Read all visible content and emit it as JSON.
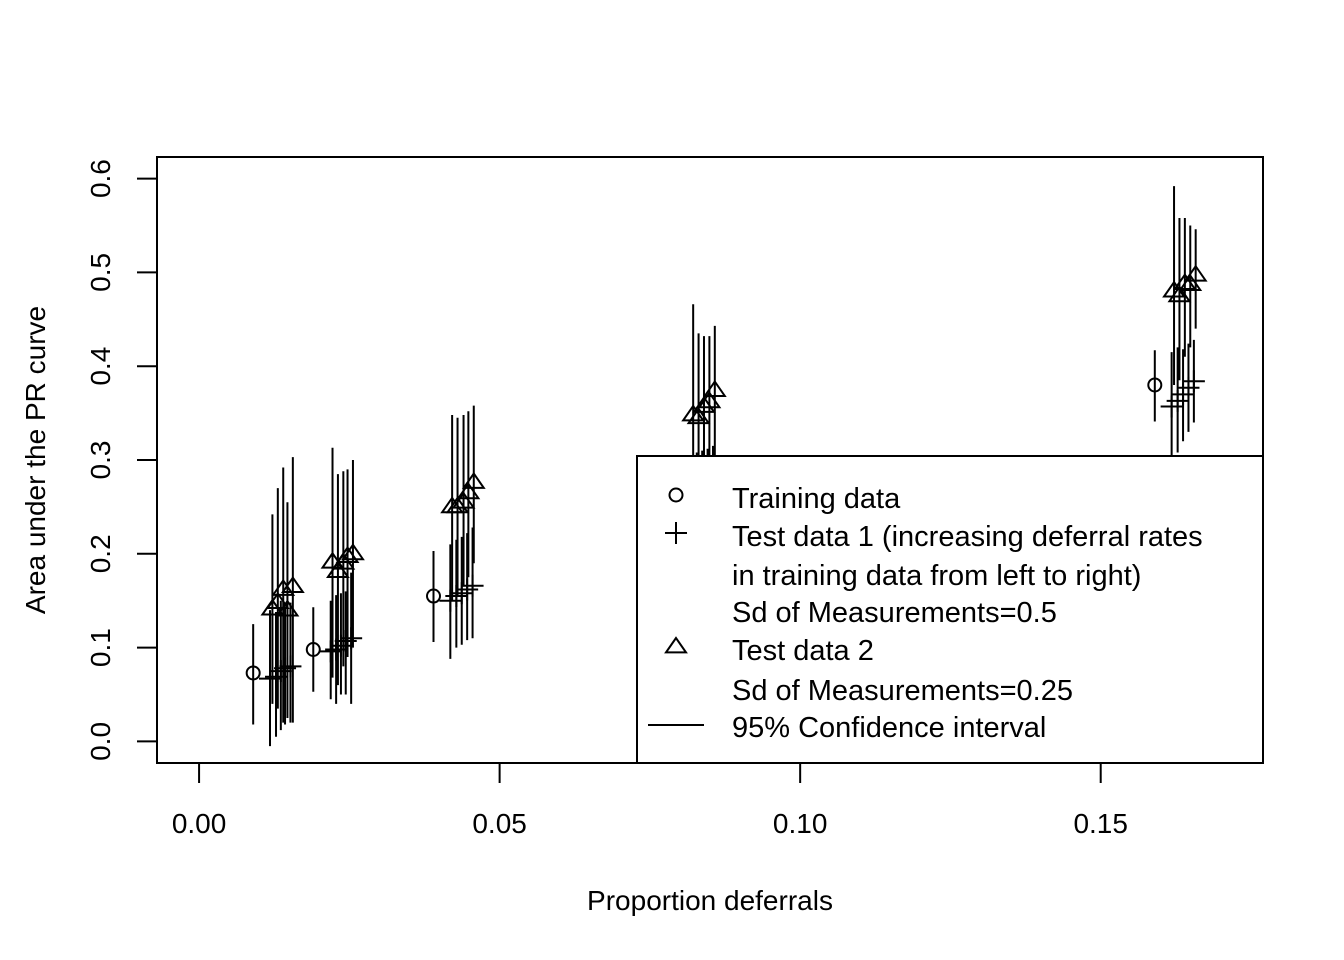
{
  "chart_data": {
    "type": "scatter",
    "title": "",
    "xlabel": "Proportion deferrals",
    "ylabel": "Area under the PR curve",
    "xlim": [
      -0.007,
      0.177
    ],
    "ylim": [
      -0.023,
      0.623
    ],
    "x_ticks": [
      0.0,
      0.05,
      0.1,
      0.15
    ],
    "x_tick_labels": [
      "0.00",
      "0.05",
      "0.10",
      "0.15"
    ],
    "y_ticks": [
      0.0,
      0.1,
      0.2,
      0.3,
      0.4,
      0.5,
      0.6
    ],
    "y_tick_labels": [
      "0.0",
      "0.1",
      "0.2",
      "0.3",
      "0.4",
      "0.5",
      "0.6"
    ],
    "grid": false,
    "legend_position": "bottom-right",
    "legend": [
      {
        "symbol": "circle",
        "label": "Training data"
      },
      {
        "symbol": "plus",
        "label": "Test data 1 (increasing deferral rates"
      },
      {
        "symbol": "none",
        "label": "in training data from left to right)"
      },
      {
        "symbol": "none",
        "label": "Sd of Measurements=0.5"
      },
      {
        "symbol": "triangle",
        "label": "Test data 2"
      },
      {
        "symbol": "none",
        "label": "Sd of Measurements=0.25"
      },
      {
        "symbol": "line",
        "label": "95% Confidence interval"
      }
    ],
    "series": [
      {
        "name": "Training data",
        "marker": "circle",
        "points": [
          {
            "x": 0.009,
            "y": 0.073,
            "lo": 0.018,
            "hi": 0.125
          },
          {
            "x": 0.019,
            "y": 0.098,
            "lo": 0.053,
            "hi": 0.143
          },
          {
            "x": 0.039,
            "y": 0.155,
            "lo": 0.106,
            "hi": 0.203
          },
          {
            "x": 0.159,
            "y": 0.38,
            "lo": 0.341,
            "hi": 0.417
          }
        ]
      },
      {
        "name": "Test data 1 (increasing deferral rates in training data from left to right)",
        "marker": "plus",
        "points": [
          {
            "x": 0.0118,
            "y": 0.067,
            "lo": -0.005,
            "hi": 0.14
          },
          {
            "x": 0.0128,
            "y": 0.069,
            "lo": 0.005,
            "hi": 0.138
          },
          {
            "x": 0.0136,
            "y": 0.075,
            "lo": 0.012,
            "hi": 0.15
          },
          {
            "x": 0.0143,
            "y": 0.078,
            "lo": 0.018,
            "hi": 0.144
          },
          {
            "x": 0.0152,
            "y": 0.08,
            "lo": 0.02,
            "hi": 0.148
          },
          {
            "x": 0.0219,
            "y": 0.096,
            "lo": 0.045,
            "hi": 0.15
          },
          {
            "x": 0.0228,
            "y": 0.098,
            "lo": 0.04,
            "hi": 0.156
          },
          {
            "x": 0.0236,
            "y": 0.102,
            "lo": 0.05,
            "hi": 0.158
          },
          {
            "x": 0.0244,
            "y": 0.107,
            "lo": 0.05,
            "hi": 0.16
          },
          {
            "x": 0.0253,
            "y": 0.11,
            "lo": 0.04,
            "hi": 0.18
          },
          {
            "x": 0.0418,
            "y": 0.15,
            "lo": 0.088,
            "hi": 0.21
          },
          {
            "x": 0.0428,
            "y": 0.155,
            "lo": 0.1,
            "hi": 0.215
          },
          {
            "x": 0.0437,
            "y": 0.158,
            "lo": 0.103,
            "hi": 0.218
          },
          {
            "x": 0.0446,
            "y": 0.162,
            "lo": 0.108,
            "hi": 0.222
          },
          {
            "x": 0.0455,
            "y": 0.166,
            "lo": 0.11,
            "hi": 0.228
          },
          {
            "x": 0.0818,
            "y": 0.262,
            "lo": 0.22,
            "hi": 0.305
          },
          {
            "x": 0.0828,
            "y": 0.265,
            "lo": 0.222,
            "hi": 0.308
          },
          {
            "x": 0.0837,
            "y": 0.267,
            "lo": 0.225,
            "hi": 0.31
          },
          {
            "x": 0.0846,
            "y": 0.27,
            "lo": 0.228,
            "hi": 0.312
          },
          {
            "x": 0.0855,
            "y": 0.273,
            "lo": 0.23,
            "hi": 0.315
          },
          {
            "x": 0.1618,
            "y": 0.357,
            "lo": 0.3,
            "hi": 0.415
          },
          {
            "x": 0.1628,
            "y": 0.363,
            "lo": 0.308,
            "hi": 0.42
          },
          {
            "x": 0.1637,
            "y": 0.37,
            "lo": 0.32,
            "hi": 0.418
          },
          {
            "x": 0.1646,
            "y": 0.377,
            "lo": 0.33,
            "hi": 0.424
          },
          {
            "x": 0.1655,
            "y": 0.384,
            "lo": 0.34,
            "hi": 0.428
          }
        ]
      },
      {
        "name": "Test data 2",
        "marker": "triangle",
        "points": [
          {
            "x": 0.0122,
            "y": 0.141,
            "lo": 0.04,
            "hi": 0.242
          },
          {
            "x": 0.0131,
            "y": 0.148,
            "lo": 0.035,
            "hi": 0.27
          },
          {
            "x": 0.014,
            "y": 0.162,
            "lo": 0.02,
            "hi": 0.292
          },
          {
            "x": 0.0147,
            "y": 0.14,
            "lo": 0.025,
            "hi": 0.255
          },
          {
            "x": 0.0156,
            "y": 0.165,
            "lo": 0.02,
            "hi": 0.303
          },
          {
            "x": 0.0222,
            "y": 0.191,
            "lo": 0.068,
            "hi": 0.313
          },
          {
            "x": 0.0231,
            "y": 0.181,
            "lo": 0.06,
            "hi": 0.285
          },
          {
            "x": 0.024,
            "y": 0.19,
            "lo": 0.08,
            "hi": 0.288
          },
          {
            "x": 0.0247,
            "y": 0.197,
            "lo": 0.09,
            "hi": 0.29
          },
          {
            "x": 0.0256,
            "y": 0.2,
            "lo": 0.1,
            "hi": 0.3
          },
          {
            "x": 0.0421,
            "y": 0.25,
            "lo": 0.15,
            "hi": 0.348
          },
          {
            "x": 0.043,
            "y": 0.25,
            "lo": 0.155,
            "hi": 0.345
          },
          {
            "x": 0.044,
            "y": 0.255,
            "lo": 0.165,
            "hi": 0.348
          },
          {
            "x": 0.0448,
            "y": 0.265,
            "lo": 0.175,
            "hi": 0.352
          },
          {
            "x": 0.0457,
            "y": 0.276,
            "lo": 0.19,
            "hi": 0.358
          },
          {
            "x": 0.0822,
            "y": 0.348,
            "lo": 0.26,
            "hi": 0.466
          },
          {
            "x": 0.0831,
            "y": 0.345,
            "lo": 0.255,
            "hi": 0.435
          },
          {
            "x": 0.084,
            "y": 0.357,
            "lo": 0.27,
            "hi": 0.432
          },
          {
            "x": 0.0849,
            "y": 0.362,
            "lo": 0.28,
            "hi": 0.432
          },
          {
            "x": 0.0858,
            "y": 0.374,
            "lo": 0.3,
            "hi": 0.443
          },
          {
            "x": 0.1622,
            "y": 0.48,
            "lo": 0.38,
            "hi": 0.592
          },
          {
            "x": 0.1631,
            "y": 0.475,
            "lo": 0.385,
            "hi": 0.558
          },
          {
            "x": 0.164,
            "y": 0.488,
            "lo": 0.41,
            "hi": 0.558
          },
          {
            "x": 0.1649,
            "y": 0.487,
            "lo": 0.42,
            "hi": 0.55
          },
          {
            "x": 0.1658,
            "y": 0.497,
            "lo": 0.44,
            "hi": 0.546
          }
        ]
      }
    ]
  }
}
